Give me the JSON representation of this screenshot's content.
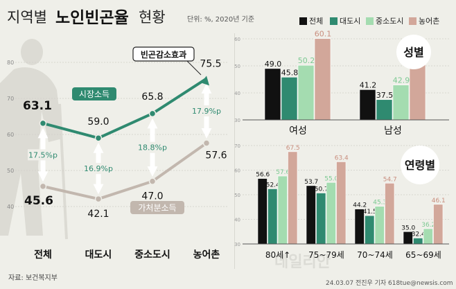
{
  "header": {
    "title_prefix": "지역별",
    "title_main": "노인빈곤율",
    "title_suffix": "현황",
    "unit": "단위: %, 2020년 기준"
  },
  "legend": [
    {
      "label": "전체",
      "color": "#111111"
    },
    {
      "label": "대도시",
      "color": "#2f8a70"
    },
    {
      "label": "중소도시",
      "color": "#a4dcb0"
    },
    {
      "label": "농어촌",
      "color": "#d2a79a"
    }
  ],
  "source": "자료: 보건복지부",
  "credit": "24.03.07 전진우 기자 618tue@newsis.com",
  "watermark": "데일리안",
  "chart_data": [
    {
      "type": "line",
      "categories": [
        "전체",
        "대도시",
        "중소도시",
        "농어촌"
      ],
      "series": [
        {
          "name": "시장소득",
          "values": [
            63.1,
            59.0,
            65.8,
            75.5
          ],
          "color": "#2f8a70"
        },
        {
          "name": "가처분소득",
          "values": [
            45.6,
            42.1,
            47.0,
            57.6
          ],
          "color": "#c2b7ae"
        }
      ],
      "differences": [
        "17.5%p",
        "16.9%p",
        "18.8%p",
        "17.9%p"
      ],
      "annotation": "빈곤감소효과",
      "ylim": [
        30,
        85
      ],
      "gridlines": [
        40,
        50,
        60,
        70,
        80
      ]
    },
    {
      "type": "bar",
      "title": "성별",
      "categories": [
        "여성",
        "남성"
      ],
      "series": [
        {
          "name": "전체",
          "values": [
            49.0,
            41.2
          ]
        },
        {
          "name": "대도시",
          "values": [
            45.8,
            37.5
          ]
        },
        {
          "name": "중소도시",
          "values": [
            50.2,
            42.9
          ]
        },
        {
          "name": "농어촌",
          "values": [
            60.1,
            54.3
          ]
        }
      ],
      "ylim": [
        30,
        65
      ],
      "gridlines": [
        30,
        40,
        50,
        60
      ]
    },
    {
      "type": "bar",
      "title": "연령별",
      "categories": [
        "80세↑",
        "75~79세",
        "70~74세",
        "65~69세"
      ],
      "series": [
        {
          "name": "전체",
          "values": [
            56.6,
            53.7,
            44.2,
            35.0
          ]
        },
        {
          "name": "대도시",
          "values": [
            52.4,
            50.7,
            41.5,
            32.4
          ]
        },
        {
          "name": "중소도시",
          "values": [
            57.6,
            55.0,
            45.3,
            36.2
          ]
        },
        {
          "name": "농어촌",
          "values": [
            67.5,
            63.4,
            54.7,
            46.1
          ]
        }
      ],
      "ylim": [
        30,
        70
      ],
      "gridlines": [
        30,
        40,
        50,
        60,
        70
      ]
    }
  ]
}
